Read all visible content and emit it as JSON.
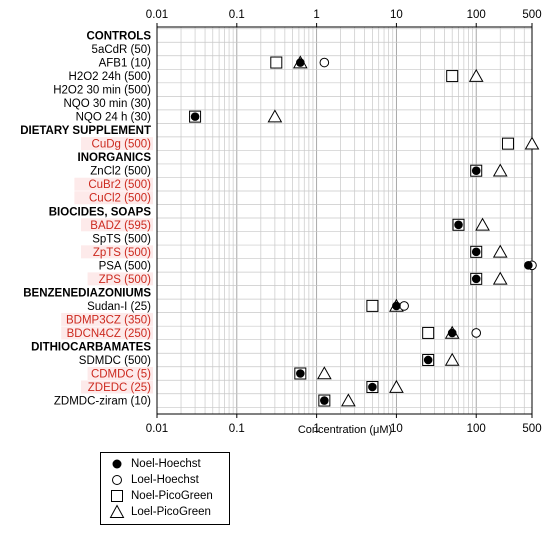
{
  "chart_data": {
    "type": "scatter",
    "xscale": "log",
    "xlim": [
      0.01,
      500
    ],
    "xticks": [
      "0.01",
      "0.1",
      "1",
      "10",
      "100",
      "500"
    ],
    "xlabel": "Concentration (μM)",
    "grid": true,
    "legend_position": "bottom-left",
    "colors": {
      "normal_label": "#000000",
      "highlight_label": "#cc2a1f",
      "highlight_bg": "#fdeaea",
      "grid": "#c8c8c8"
    },
    "rows": [
      {
        "label": "CONTROLS",
        "header": true
      },
      {
        "label": "5aCdR (50)"
      },
      {
        "label": "AFB1 (10)"
      },
      {
        "label": "H2O2 24h (500)"
      },
      {
        "label": "H2O2 30 min (500)"
      },
      {
        "label": "NQO 30 min (30)"
      },
      {
        "label": "NQO 24 h (30)"
      },
      {
        "label": "DIETARY SUPPLEMENT",
        "header": true
      },
      {
        "label": "CuDg (500)",
        "highlight": true
      },
      {
        "label": "INORGANICS",
        "header": true
      },
      {
        "label": "ZnCl2 (500)"
      },
      {
        "label": "CuBr2 (500)",
        "highlight": true
      },
      {
        "label": "CuCl2 (500)",
        "highlight": true
      },
      {
        "label": "BIOCIDES, SOAPS",
        "header": true
      },
      {
        "label": "BADZ (595)",
        "highlight": true
      },
      {
        "label": "SpTS (500)"
      },
      {
        "label": "ZpTS (500)",
        "highlight": true
      },
      {
        "label": "PSA (500)"
      },
      {
        "label": "ZPS (500)",
        "highlight": true
      },
      {
        "label": "BENZENEDIAZONIUMS",
        "header": true
      },
      {
        "label": "Sudan-I (25)"
      },
      {
        "label": "BDMP3CZ (350)",
        "highlight": true
      },
      {
        "label": "BDCN4CZ (250)",
        "highlight": true
      },
      {
        "label": "DITHIOCARBAMATES",
        "header": true
      },
      {
        "label": "SDMDC (500)"
      },
      {
        "label": "CDMDC (5)",
        "highlight": true
      },
      {
        "label": "ZDEDC (25)",
        "highlight": true
      },
      {
        "label": "ZDMDC-ziram (10)"
      }
    ],
    "series": [
      {
        "name": "Noel-Hoechst",
        "marker": "filled-circle",
        "points": [
          {
            "row": "AFB1 (10)",
            "x": 0.625
          },
          {
            "row": "NQO 24 h (30)",
            "x": 0.03
          },
          {
            "row": "ZnCl2 (500)",
            "x": 100
          },
          {
            "row": "BADZ (595)",
            "x": 60
          },
          {
            "row": "ZpTS (500)",
            "x": 100
          },
          {
            "row": "PSA (500)",
            "x": 450
          },
          {
            "row": "ZPS (500)",
            "x": 100
          },
          {
            "row": "Sudan-I (25)",
            "x": 10
          },
          {
            "row": "BDCN4CZ (250)",
            "x": 50
          },
          {
            "row": "SDMDC (500)",
            "x": 25
          },
          {
            "row": "CDMDC (5)",
            "x": 0.625
          },
          {
            "row": "ZDEDC (25)",
            "x": 5
          },
          {
            "row": "ZDMDC-ziram (10)",
            "x": 1.25
          }
        ]
      },
      {
        "name": "Loel-Hoechst",
        "marker": "open-circle",
        "points": [
          {
            "row": "AFB1 (10)",
            "x": 1.25
          },
          {
            "row": "PSA (500)",
            "x": 500
          },
          {
            "row": "Sudan-I (25)",
            "x": 12.5
          },
          {
            "row": "BDCN4CZ (250)",
            "x": 100
          }
        ]
      },
      {
        "name": "Noel-PicoGreen",
        "marker": "open-square",
        "points": [
          {
            "row": "AFB1 (10)",
            "x": 0.3125
          },
          {
            "row": "H2O2 24h (500)",
            "x": 50
          },
          {
            "row": "NQO 24 h (30)",
            "x": 0.03
          },
          {
            "row": "CuDg (500)",
            "x": 250
          },
          {
            "row": "ZnCl2 (500)",
            "x": 100
          },
          {
            "row": "BADZ (595)",
            "x": 60
          },
          {
            "row": "ZpTS (500)",
            "x": 100
          },
          {
            "row": "ZPS (500)",
            "x": 100
          },
          {
            "row": "Sudan-I (25)",
            "x": 5
          },
          {
            "row": "BDCN4CZ (250)",
            "x": 25
          },
          {
            "row": "SDMDC (500)",
            "x": 25
          },
          {
            "row": "CDMDC (5)",
            "x": 0.625
          },
          {
            "row": "ZDEDC (25)",
            "x": 5
          },
          {
            "row": "ZDMDC-ziram (10)",
            "x": 1.25
          }
        ]
      },
      {
        "name": "Loel-PicoGreen",
        "marker": "open-triangle",
        "points": [
          {
            "row": "AFB1 (10)",
            "x": 0.625
          },
          {
            "row": "H2O2 24h (500)",
            "x": 100
          },
          {
            "row": "NQO 24 h (30)",
            "x": 0.3
          },
          {
            "row": "CuDg (500)",
            "x": 500
          },
          {
            "row": "ZnCl2 (500)",
            "x": 200
          },
          {
            "row": "BADZ (595)",
            "x": 120
          },
          {
            "row": "ZpTS (500)",
            "x": 200
          },
          {
            "row": "ZPS (500)",
            "x": 200
          },
          {
            "row": "Sudan-I (25)",
            "x": 10
          },
          {
            "row": "BDCN4CZ (250)",
            "x": 50
          },
          {
            "row": "SDMDC (500)",
            "x": 50
          },
          {
            "row": "CDMDC (5)",
            "x": 1.25
          },
          {
            "row": "ZDEDC (25)",
            "x": 10
          },
          {
            "row": "ZDMDC-ziram (10)",
            "x": 2.5
          }
        ]
      }
    ]
  }
}
